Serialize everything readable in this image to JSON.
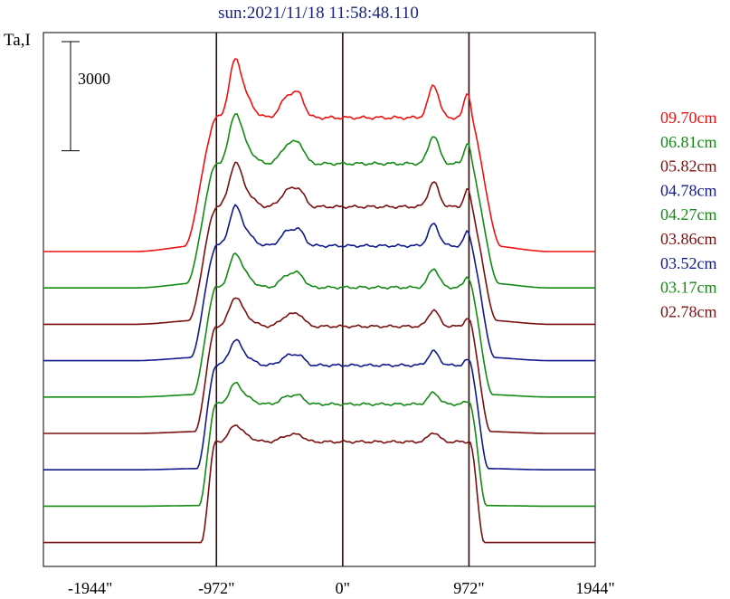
{
  "chart_data": {
    "type": "line",
    "title": "sun:2021/11/18 11:58:48.110",
    "ylabel": "Ta,I",
    "scale_bar_label": "3000",
    "scale_bar_value": 3000,
    "xlim": [
      -2304,
      1944
    ],
    "x_ticks": [
      {
        "value": -1944,
        "label": "-1944\""
      },
      {
        "value": -972,
        "label": "-972\""
      },
      {
        "value": 0,
        "label": "0\""
      },
      {
        "value": 972,
        "label": "972\""
      },
      {
        "value": 1944,
        "label": "1944\""
      }
    ],
    "vertical_markers": [
      -972,
      0,
      972
    ],
    "curve_offset_step": 1000,
    "legend_position": "right",
    "series": [
      {
        "name": "09.70cm",
        "color": "#ee1111",
        "peak": 4900
      },
      {
        "name": "06.81cm",
        "color": "#138a13",
        "peak": 4600
      },
      {
        "name": "05.82cm",
        "color": "#7a1010",
        "peak": 4400
      },
      {
        "name": "04.78cm",
        "color": "#101a8a",
        "peak": 4350
      },
      {
        "name": "04.27cm",
        "color": "#138a13",
        "peak": 4200
      },
      {
        "name": "03.86cm",
        "color": "#7a1010",
        "peak": 4150
      },
      {
        "name": "03.52cm",
        "color": "#101a8a",
        "peak": 4100
      },
      {
        "name": "03.17cm",
        "color": "#138a13",
        "peak": 4050
      },
      {
        "name": "02.78cm",
        "color": "#7a1010",
        "peak": 4050
      }
    ]
  }
}
